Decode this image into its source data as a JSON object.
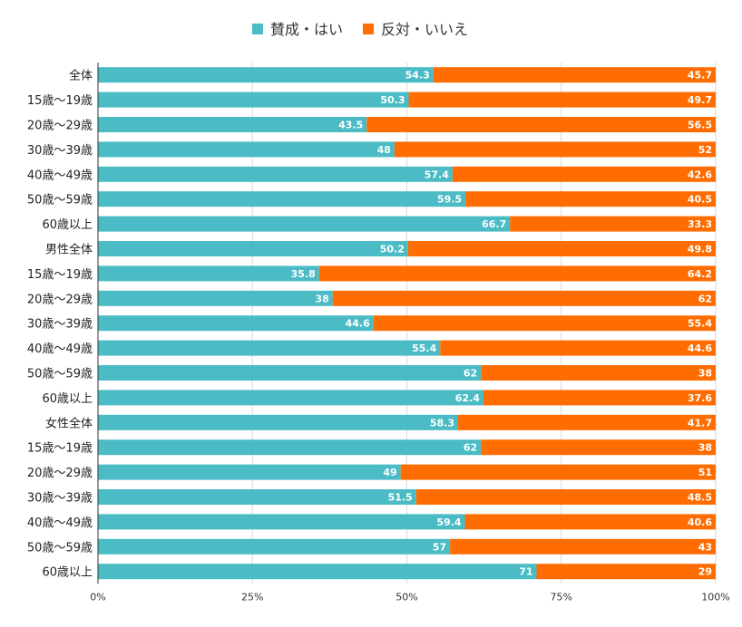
{
  "chart_data": {
    "type": "bar",
    "orientation": "horizontal",
    "stacked": true,
    "categories": [
      "全体",
      "15歳～19歳",
      "20歳～29歳",
      "30歳～39歳",
      "40歳～49歳",
      "50歳～59歳",
      "60歳以上",
      "男性全体",
      "15歳～19歳",
      "20歳～29歳",
      "30歳～39歳",
      "40歳～49歳",
      "50歳～59歳",
      "60歳以上",
      "女性全体",
      "15歳～19歳",
      "20歳～29歳",
      "30歳～39歳",
      "40歳～49歳",
      "50歳～59歳",
      "60歳以上"
    ],
    "series": [
      {
        "name": "賛成・はい",
        "color": "#4bbcc5",
        "values": [
          54.3,
          50.3,
          43.5,
          48,
          57.4,
          59.5,
          66.7,
          50.2,
          35.8,
          38,
          44.6,
          55.4,
          62,
          62.4,
          58.3,
          62,
          49,
          51.5,
          59.4,
          57,
          71
        ]
      },
      {
        "name": "反対・いいえ",
        "color": "#ff6d00",
        "values": [
          45.7,
          49.7,
          56.5,
          52,
          42.6,
          40.5,
          33.3,
          49.8,
          64.2,
          62,
          55.4,
          44.6,
          38,
          37.6,
          41.7,
          38,
          51,
          48.5,
          40.6,
          43,
          29
        ]
      }
    ],
    "xlim": [
      0,
      100
    ],
    "xticks": [
      "0%",
      "25%",
      "50%",
      "75%",
      "100%"
    ],
    "legend_position": "top-center",
    "grid": true
  }
}
